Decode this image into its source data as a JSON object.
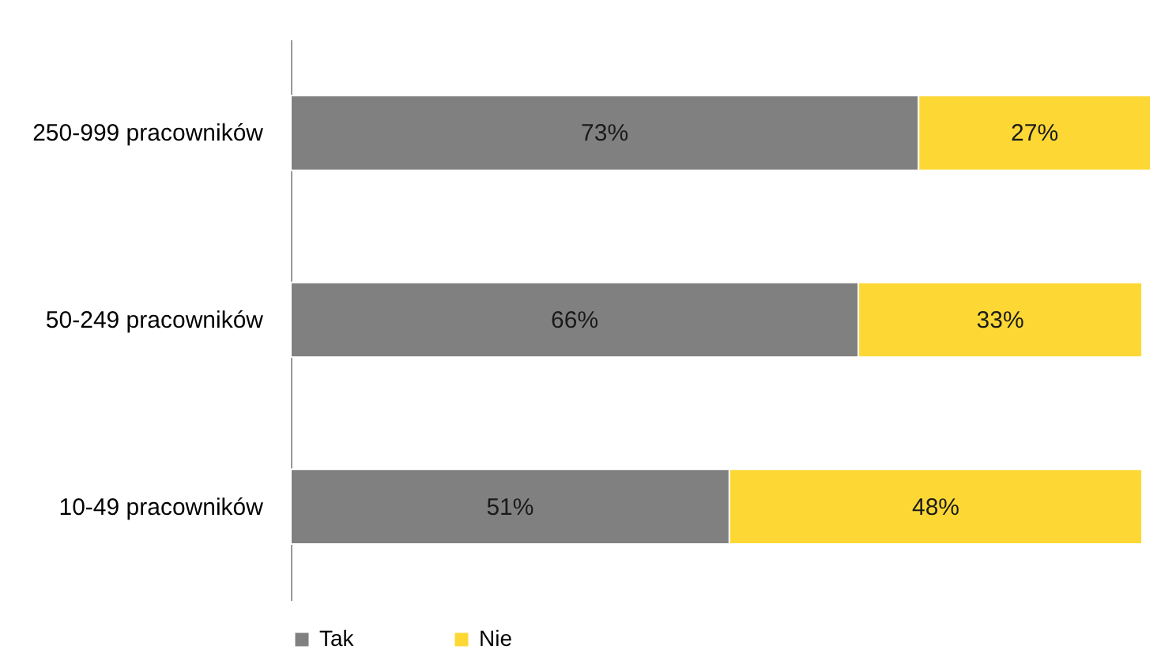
{
  "chart_data": {
    "type": "bar",
    "orientation": "horizontal",
    "stacked": true,
    "legend": "bottom",
    "grid": false,
    "categories": [
      "250-999 pracowników",
      "50-249 pracowników",
      "10-49 pracowników"
    ],
    "series": [
      {
        "name": "Tak",
        "color": "#808080",
        "values": [
          73,
          66,
          51
        ],
        "value_labels": [
          "73%",
          "66%",
          "51%"
        ]
      },
      {
        "name": "Nie",
        "color": "#fdd835",
        "values": [
          27,
          33,
          48
        ],
        "value_labels": [
          "27%",
          "33%",
          "48%"
        ]
      }
    ]
  }
}
